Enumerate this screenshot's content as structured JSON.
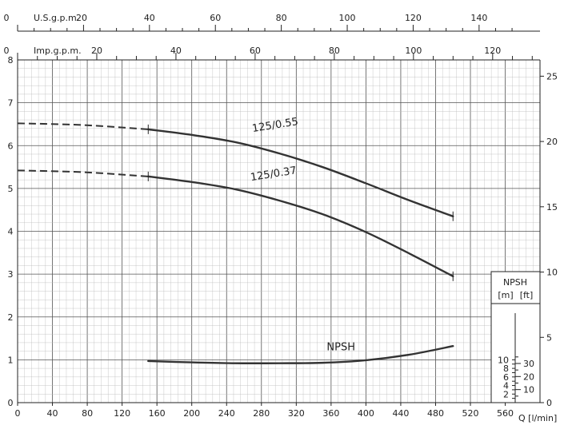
{
  "chart_data": {
    "type": "line",
    "title": "",
    "grid": true,
    "x_axis": {
      "label": "Q [l/min]",
      "range": [
        0,
        560
      ],
      "ticks": [
        0,
        40,
        80,
        120,
        160,
        200,
        240,
        280,
        320,
        360,
        400,
        440,
        480,
        520,
        560
      ]
    },
    "y_axis_left": {
      "label": "",
      "range": [
        0,
        8
      ],
      "ticks": [
        0,
        1,
        2,
        3,
        4,
        5,
        6,
        7,
        8
      ]
    },
    "y_axis_right": {
      "label": "",
      "unit": "ft",
      "ticks": [
        0,
        5,
        10,
        15,
        20,
        25
      ]
    },
    "top_axis_us": {
      "label": "U.S.g.p.m.",
      "ticks": [
        0,
        20,
        40,
        60,
        80,
        100,
        120,
        140
      ]
    },
    "top_axis_imp": {
      "label": "Imp.g.p.m.",
      "ticks": [
        0,
        20,
        40,
        60,
        80,
        100,
        120
      ]
    },
    "npsh_scale": {
      "title": "NPSH",
      "unit_m": "[m]",
      "unit_ft": "[ft]",
      "m_ticks": [
        2,
        4,
        6,
        8,
        10
      ],
      "ft_ticks": [
        10,
        20,
        30
      ]
    },
    "series": [
      {
        "name": "125/0.55",
        "dashed_segment": [
          [
            0,
            6.52
          ],
          [
            75,
            6.48
          ],
          [
            150,
            6.38
          ]
        ],
        "points": [
          [
            150,
            6.38
          ],
          [
            200,
            6.25
          ],
          [
            250,
            6.08
          ],
          [
            300,
            5.82
          ],
          [
            350,
            5.5
          ],
          [
            400,
            5.12
          ],
          [
            450,
            4.72
          ],
          [
            500,
            4.35
          ]
        ]
      },
      {
        "name": "125/0.37",
        "dashed_segment": [
          [
            0,
            5.42
          ],
          [
            75,
            5.38
          ],
          [
            150,
            5.28
          ]
        ],
        "points": [
          [
            150,
            5.28
          ],
          [
            200,
            5.15
          ],
          [
            250,
            4.98
          ],
          [
            300,
            4.72
          ],
          [
            350,
            4.4
          ],
          [
            400,
            3.98
          ],
          [
            450,
            3.48
          ],
          [
            500,
            2.95
          ]
        ]
      },
      {
        "name": "NPSH",
        "points": [
          [
            150,
            0.97
          ],
          [
            200,
            0.94
          ],
          [
            250,
            0.92
          ],
          [
            300,
            0.92
          ],
          [
            350,
            0.93
          ],
          [
            400,
            0.99
          ],
          [
            450,
            1.12
          ],
          [
            500,
            1.32
          ]
        ]
      }
    ]
  }
}
